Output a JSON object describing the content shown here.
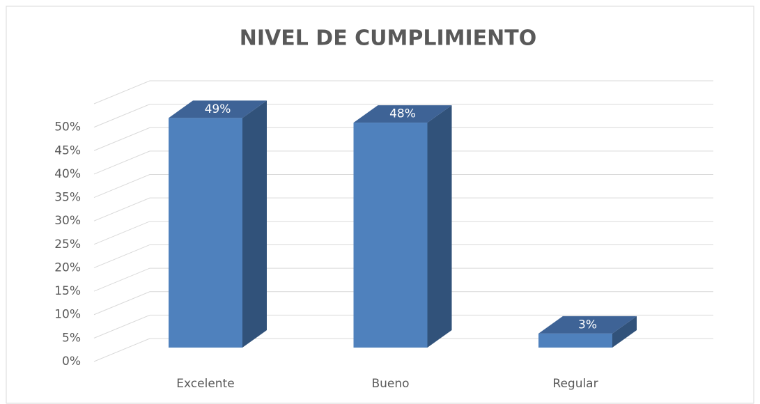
{
  "chart_data": {
    "type": "bar3d",
    "title": "NIVEL DE CUMPLIMIENTO",
    "categories": [
      "Excelente",
      "Bueno",
      "Regular"
    ],
    "values": [
      49,
      48,
      3
    ],
    "value_labels": [
      "49%",
      "48%",
      "3%"
    ],
    "color": "#4f81bd",
    "ylim": [
      0,
      55
    ],
    "yticks": [
      {
        "value": 0,
        "label": "0%"
      },
      {
        "value": 5,
        "label": "5%"
      },
      {
        "value": 10,
        "label": "10%"
      },
      {
        "value": 15,
        "label": "15%"
      },
      {
        "value": 20,
        "label": "20%"
      },
      {
        "value": 25,
        "label": "25%"
      },
      {
        "value": 30,
        "label": "30%"
      },
      {
        "value": 35,
        "label": "35%"
      },
      {
        "value": 40,
        "label": "40%"
      },
      {
        "value": 45,
        "label": "45%"
      },
      {
        "value": 50,
        "label": "50%"
      }
    ],
    "grid": true
  }
}
